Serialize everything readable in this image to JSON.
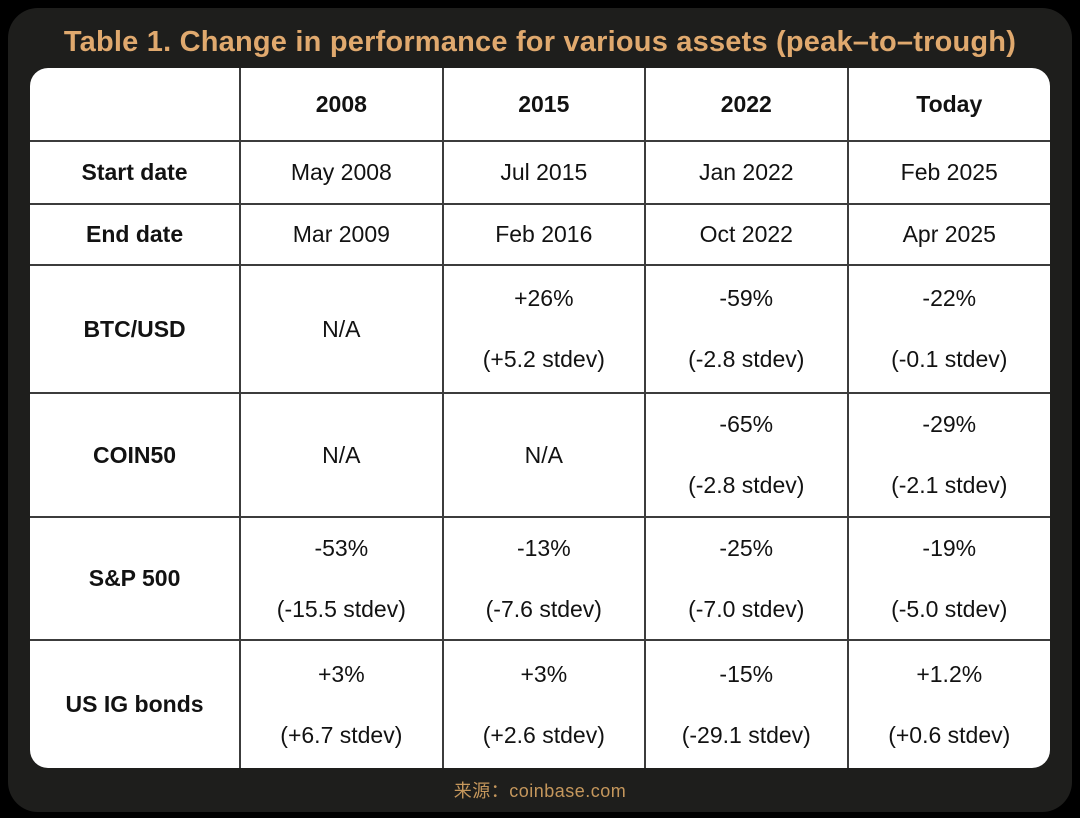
{
  "colors": {
    "page_background": "#000000",
    "card_background": "#1e1e1c",
    "title_gold": "#e0a96e",
    "source_gold": "#c5975c",
    "table_background": "#ffffff",
    "table_line": "#3c3c3c",
    "table_text": "#121212"
  },
  "footer": {
    "source_label": "来源：coinbase.com"
  },
  "chart_data": {
    "type": "table",
    "title": "Table 1. Change in performance for various assets (peak–to–trough)",
    "columns": [
      "",
      "2008",
      "2015",
      "2022",
      "Today"
    ],
    "rows": [
      {
        "label": "Start date",
        "values": [
          [
            "May 2008"
          ],
          [
            "Jul 2015"
          ],
          [
            "Jan 2022"
          ],
          [
            "Feb 2025"
          ]
        ]
      },
      {
        "label": "End date",
        "values": [
          [
            "Mar 2009"
          ],
          [
            "Feb 2016"
          ],
          [
            "Oct 2022"
          ],
          [
            "Apr 2025"
          ]
        ]
      },
      {
        "label": "BTC/USD",
        "values": [
          [
            "N/A"
          ],
          [
            "+26%",
            "(+5.2 stdev)"
          ],
          [
            "-59%",
            "(-2.8 stdev)"
          ],
          [
            "-22%",
            "(-0.1 stdev)"
          ]
        ]
      },
      {
        "label": "COIN50",
        "values": [
          [
            "N/A"
          ],
          [
            "N/A"
          ],
          [
            "-65%",
            "(-2.8 stdev)"
          ],
          [
            "-29%",
            "(-2.1 stdev)"
          ]
        ]
      },
      {
        "label": "S&P 500",
        "values": [
          [
            "-53%",
            "(-15.5 stdev)"
          ],
          [
            "-13%",
            "(-7.6 stdev)"
          ],
          [
            "-25%",
            "(-7.0 stdev)"
          ],
          [
            "-19%",
            "(-5.0 stdev)"
          ]
        ]
      },
      {
        "label": "US IG bonds",
        "values": [
          [
            "+3%",
            "(+6.7 stdev)"
          ],
          [
            "+3%",
            "(+2.6 stdev)"
          ],
          [
            "-15%",
            "(-29.1 stdev)"
          ],
          [
            "+1.2%",
            "(+0.6 stdev)"
          ]
        ]
      }
    ]
  }
}
